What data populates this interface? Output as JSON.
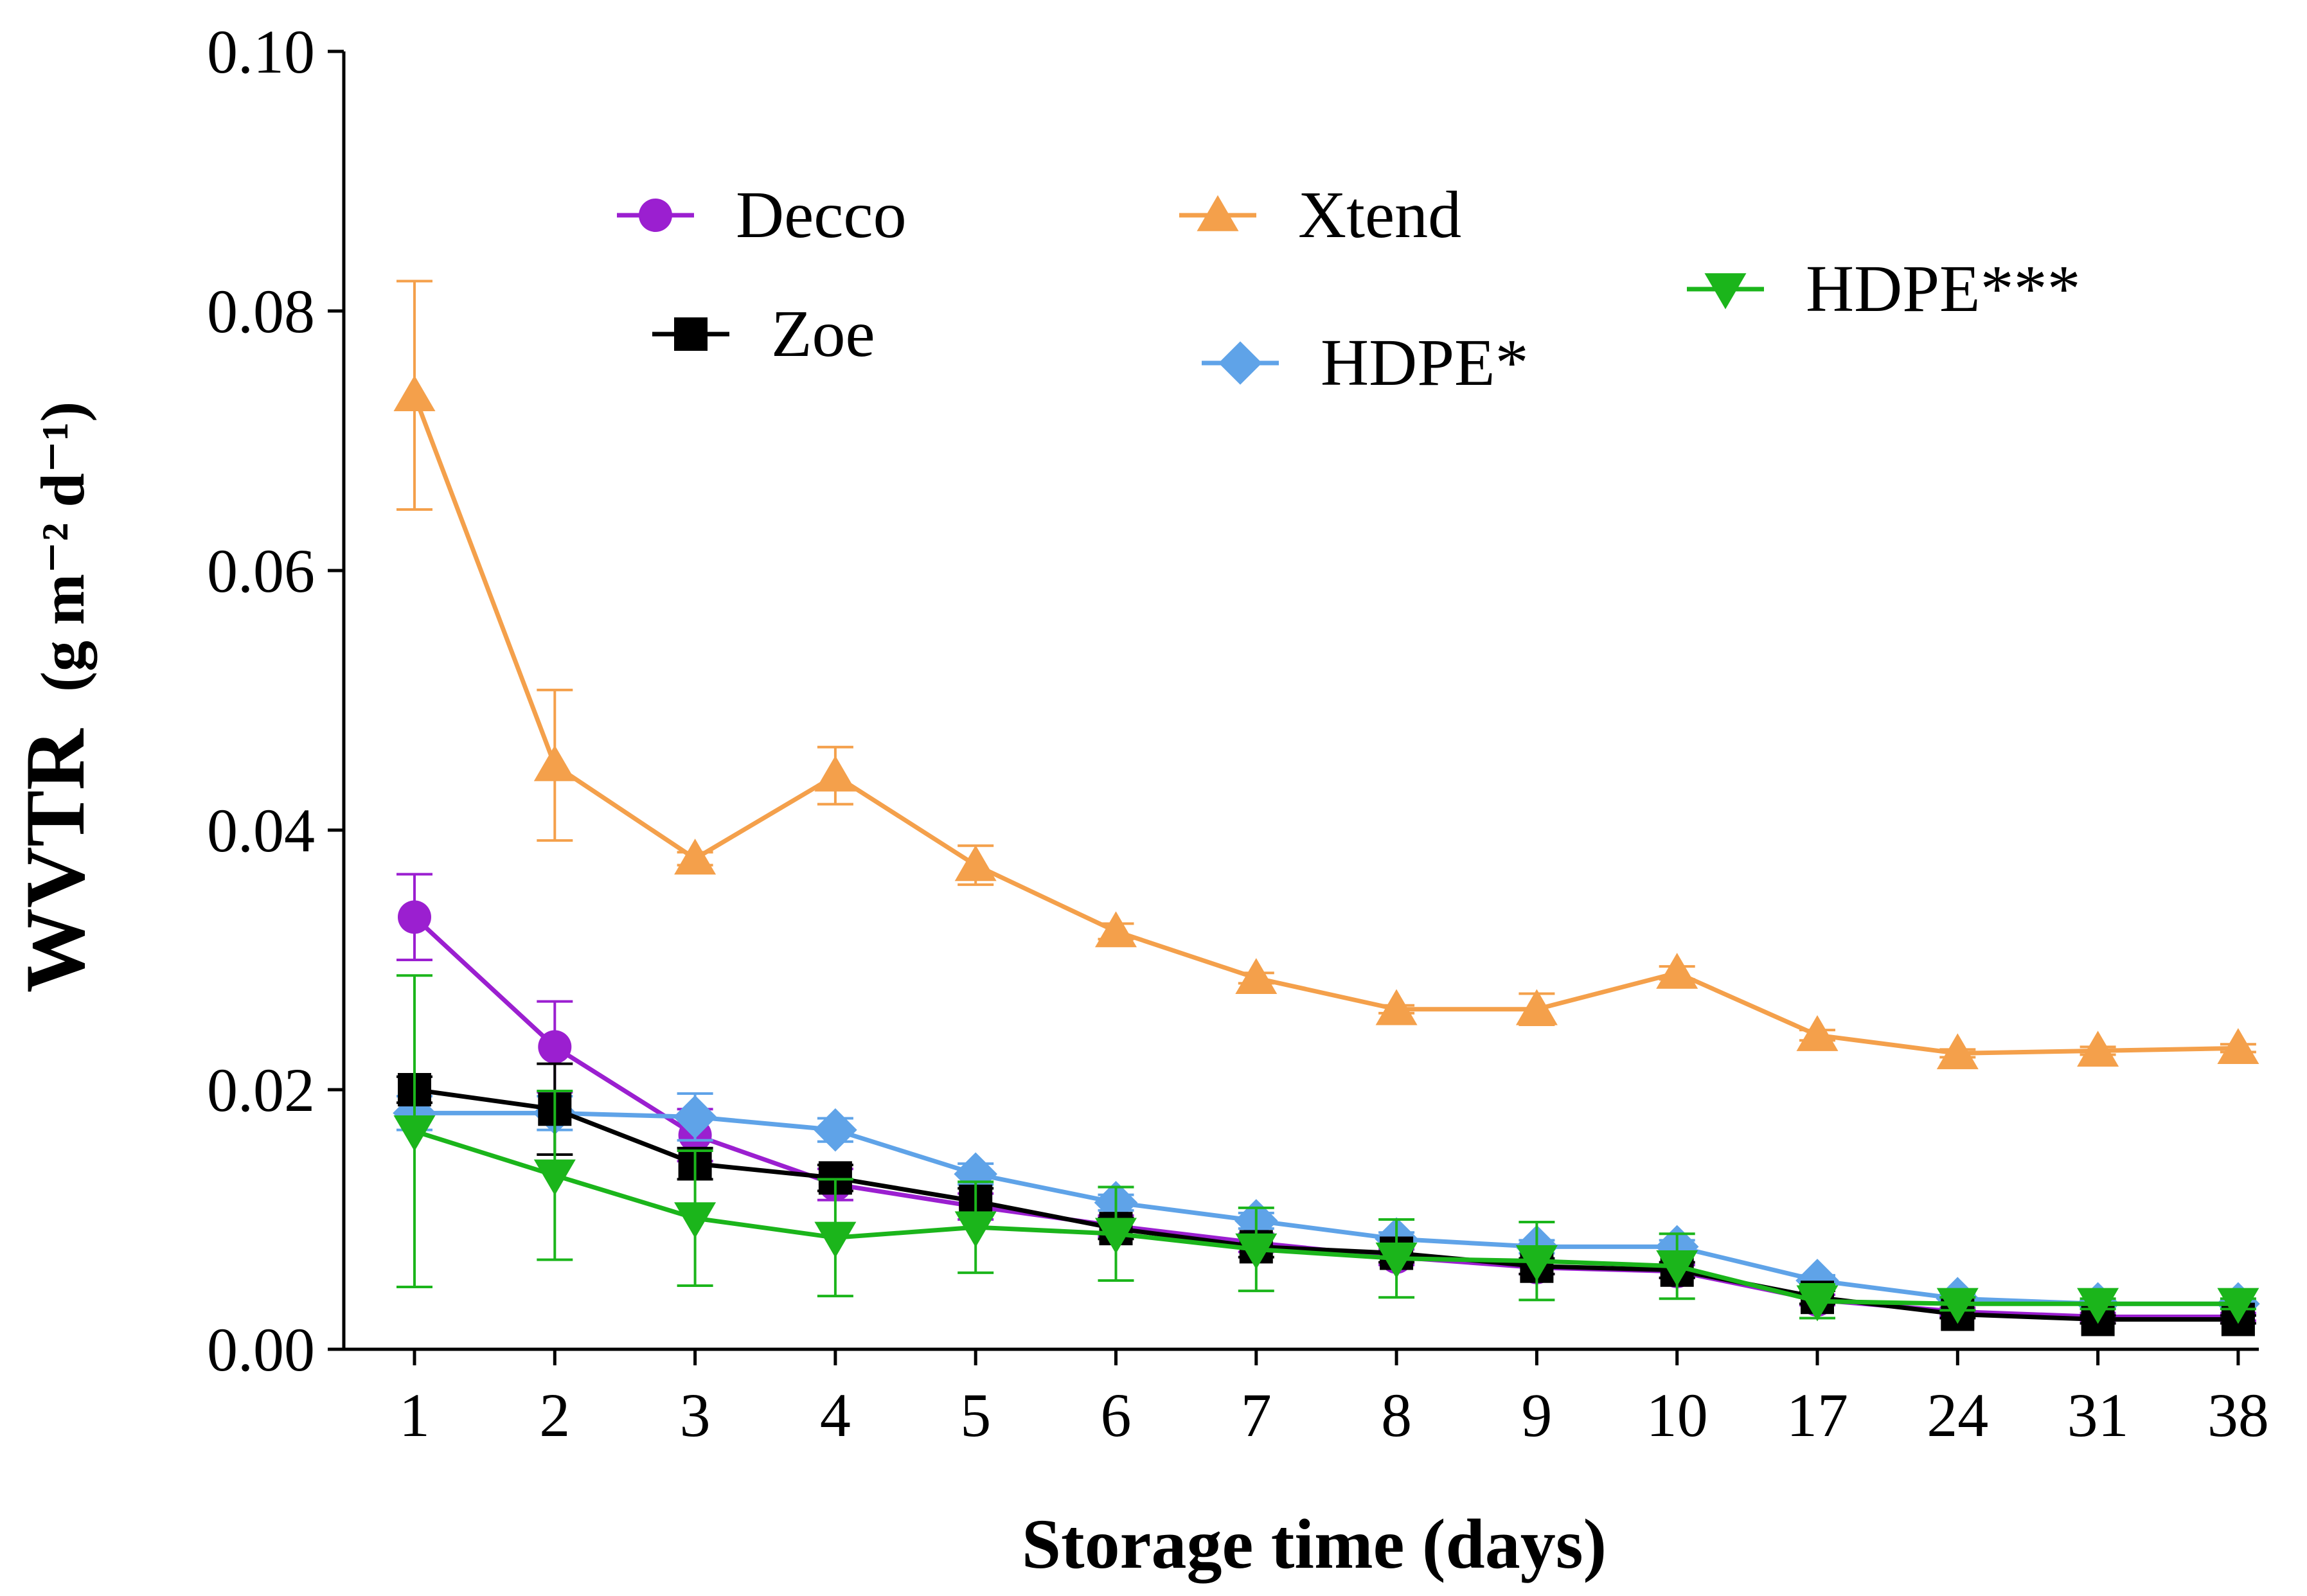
{
  "chart_data": {
    "type": "line",
    "xlabel": "Storage time (days)",
    "ylabel_main": "WVTR",
    "ylabel_unit": "(g m⁻² d⁻¹)",
    "categories": [
      "1",
      "2",
      "3",
      "4",
      "5",
      "6",
      "7",
      "8",
      "9",
      "10",
      "17",
      "24",
      "31",
      "38"
    ],
    "ylim": [
      0,
      0.1
    ],
    "yticks": [
      "0.00",
      "0.02",
      "0.04",
      "0.06",
      "0.08",
      "0.10"
    ],
    "ytick_values": [
      0,
      0.02,
      0.04,
      0.06,
      0.08,
      0.1
    ],
    "grid": false,
    "series": [
      {
        "name": "Xtend",
        "color": "#f4a04b",
        "marker": "triangle-up",
        "values": [
          0.0735,
          0.045,
          0.0378,
          0.0442,
          0.0373,
          0.0322,
          0.0286,
          0.0262,
          0.0262,
          0.029,
          0.0242,
          0.0228,
          0.023,
          0.0232
        ],
        "errors": [
          0.0088,
          0.0058,
          0.0005,
          0.0022,
          0.0015,
          0.0006,
          0.0004,
          0.0003,
          0.0012,
          0.0005,
          0.0004,
          0.0003,
          0.0003,
          0.0003
        ]
      },
      {
        "name": "Decco",
        "color": "#9b1fd0",
        "marker": "circle",
        "values": [
          0.0333,
          0.0233,
          0.0165,
          0.0127,
          0.011,
          0.0095,
          0.0082,
          0.0071,
          0.0063,
          0.006,
          0.0038,
          0.0029,
          0.0025,
          0.0025
        ],
        "errors": [
          0.0033,
          0.0035,
          0.002,
          0.0012,
          0.001,
          0.0008,
          0.0007,
          0.0006,
          0.0005,
          0.0005,
          0.0004,
          0.0003,
          0.0003,
          0.0003
        ]
      },
      {
        "name": "HDPE*",
        "color": "#5fa3e8",
        "marker": "diamond",
        "values": [
          0.0182,
          0.0182,
          0.0179,
          0.0169,
          0.0135,
          0.0113,
          0.0099,
          0.0085,
          0.0079,
          0.0079,
          0.0053,
          0.0039,
          0.0035,
          0.0035
        ],
        "errors": [
          0.0013,
          0.0013,
          0.0018,
          0.0009,
          0.0008,
          0.0006,
          0.0006,
          0.0005,
          0.0005,
          0.0005,
          0.0004,
          0.0003,
          0.0003,
          0.0003
        ]
      },
      {
        "name": "Zoe",
        "color": "#000000",
        "marker": "square",
        "values": [
          0.02,
          0.0185,
          0.0143,
          0.0132,
          0.0114,
          0.0093,
          0.0079,
          0.0074,
          0.0064,
          0.0061,
          0.004,
          0.0027,
          0.0023,
          0.0023
        ],
        "errors": [
          0.001,
          0.0035,
          0.0012,
          0.001,
          0.001,
          0.0008,
          0.0008,
          0.0007,
          0.0006,
          0.0006,
          0.0005,
          0.0003,
          0.0003,
          0.0003
        ]
      },
      {
        "name": "HDPE***",
        "color": "#1bb51b",
        "marker": "triangle-down",
        "values": [
          0.0168,
          0.0134,
          0.0101,
          0.0086,
          0.0094,
          0.0089,
          0.0077,
          0.007,
          0.0068,
          0.0064,
          0.0037,
          0.0035,
          0.0035,
          0.0035
        ],
        "errors": [
          0.012,
          0.0065,
          0.0052,
          0.0045,
          0.0035,
          0.0036,
          0.0032,
          0.003,
          0.003,
          0.0025,
          0.0013,
          0.0005,
          0.0004,
          0.0004
        ]
      }
    ],
    "legend": [
      {
        "name": "Decco",
        "series_index": 1,
        "slot": "top-left"
      },
      {
        "name": "Xtend",
        "series_index": 0,
        "slot": "top-middle"
      },
      {
        "name": "Zoe",
        "series_index": 3,
        "slot": "second-left"
      },
      {
        "name": "HDPE*",
        "series_index": 2,
        "slot": "second-middle"
      },
      {
        "name": "HDPE***",
        "series_index": 4,
        "slot": "top-right"
      }
    ]
  }
}
